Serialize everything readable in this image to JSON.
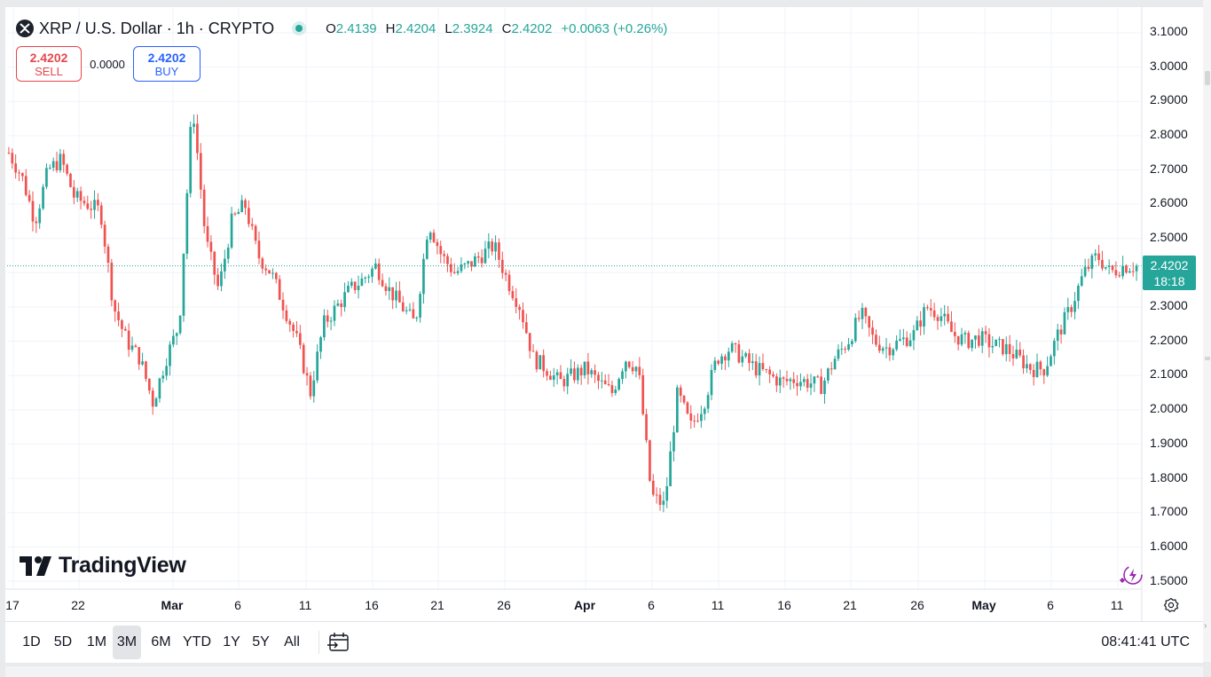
{
  "symbol": {
    "title": "XRP / U.S. Dollar · 1h · CRYPTO",
    "icon": "xrp-logo-icon",
    "status_icon": "market-open-dot-icon"
  },
  "ohlc": {
    "open_key": "O",
    "open": "2.4139",
    "high_key": "H",
    "high": "2.4204",
    "low_key": "L",
    "low": "2.3924",
    "close_key": "C",
    "close": "2.4202",
    "change": "+0.0063 (+0.26%)"
  },
  "trade": {
    "sell_price": "2.4202",
    "sell_label": "SELL",
    "spread": "0.0000",
    "buy_price": "2.4202",
    "buy_label": "BUY"
  },
  "brand": {
    "name": "TradingView",
    "icon": "tradingview-logo-icon"
  },
  "price_axis": {
    "labels": [
      "3.1000",
      "3.0000",
      "2.9000",
      "2.8000",
      "2.7000",
      "2.6000",
      "2.5000",
      "2.3000",
      "2.2000",
      "2.1000",
      "2.0000",
      "1.9000",
      "1.8000",
      "1.7000",
      "1.6000",
      "1.5000"
    ],
    "current_price": "2.4202",
    "countdown": "18:18"
  },
  "time_axis": {
    "labels": [
      "17",
      "22",
      "Mar",
      "6",
      "11",
      "16",
      "21",
      "26",
      "Apr",
      "6",
      "11",
      "16",
      "21",
      "26",
      "May",
      "6",
      "11"
    ],
    "settings_icon": "gear-icon"
  },
  "range_buttons": [
    "1D",
    "5D",
    "1M",
    "3M",
    "6M",
    "YTD",
    "1Y",
    "5Y",
    "All"
  ],
  "active_range": "3M",
  "date_range_icon": "calendar-goto-icon",
  "clock": "08:41:41 UTC",
  "colors": {
    "up": "#26a69a",
    "down": "#ef5350",
    "sell": "#e5474e",
    "buy": "#2962ff",
    "grid": "#f0f3fa"
  },
  "chart_data": {
    "type": "candlestick",
    "title": "XRP / U.S. Dollar · 1h · CRYPTO",
    "ylim": [
      1.5,
      3.1
    ],
    "x_ticks": [
      "17",
      "22",
      "Mar",
      "6",
      "11",
      "16",
      "21",
      "26",
      "Apr",
      "6",
      "11",
      "16",
      "21",
      "26",
      "May",
      "6",
      "11"
    ],
    "current_price": 2.4202,
    "grid": true,
    "series": [
      {
        "name": "XRPUSD close (approx, by date)",
        "dates": [
          "02-16",
          "02-17",
          "02-18",
          "02-19",
          "02-20",
          "02-21",
          "02-22",
          "02-23",
          "02-24",
          "02-25",
          "02-26",
          "02-27",
          "02-28",
          "03-01",
          "03-02",
          "03-03",
          "03-04",
          "03-05",
          "03-06",
          "03-07",
          "03-08",
          "03-09",
          "03-10",
          "03-11",
          "03-12",
          "03-13",
          "03-14",
          "03-15",
          "03-16",
          "03-17",
          "03-18",
          "03-19",
          "03-20",
          "03-21",
          "03-22",
          "03-23",
          "03-24",
          "03-25",
          "03-26",
          "03-27",
          "03-28",
          "03-29",
          "03-30",
          "03-31",
          "04-01",
          "04-02",
          "04-03",
          "04-04",
          "04-05",
          "04-06",
          "04-07",
          "04-08",
          "04-09",
          "04-10",
          "04-11",
          "04-12",
          "04-13",
          "04-14",
          "04-15",
          "04-16",
          "04-17",
          "04-18",
          "04-19",
          "04-20",
          "04-21",
          "04-22",
          "04-23",
          "04-24",
          "04-25",
          "04-26",
          "04-27",
          "04-28",
          "04-29",
          "04-30",
          "05-01",
          "05-02",
          "05-03",
          "05-04",
          "05-05",
          "05-06",
          "05-07",
          "05-08",
          "05-09",
          "05-10",
          "05-11",
          "05-12",
          "05-13"
        ],
        "close": [
          2.75,
          2.68,
          2.55,
          2.7,
          2.73,
          2.62,
          2.6,
          2.58,
          2.3,
          2.2,
          2.15,
          2.02,
          2.15,
          2.25,
          2.9,
          2.5,
          2.35,
          2.55,
          2.6,
          2.45,
          2.4,
          2.3,
          2.2,
          2.05,
          2.25,
          2.3,
          2.35,
          2.38,
          2.42,
          2.35,
          2.3,
          2.25,
          2.55,
          2.45,
          2.4,
          2.42,
          2.45,
          2.48,
          2.38,
          2.3,
          2.15,
          2.12,
          2.08,
          2.1,
          2.12,
          2.08,
          2.05,
          2.15,
          2.12,
          1.75,
          1.72,
          2.05,
          1.95,
          2.02,
          2.15,
          2.18,
          2.15,
          2.12,
          2.1,
          2.08,
          2.09,
          2.08,
          2.07,
          2.15,
          2.2,
          2.28,
          2.2,
          2.18,
          2.2,
          2.22,
          2.3,
          2.28,
          2.22,
          2.2,
          2.21,
          2.19,
          2.18,
          2.15,
          2.12,
          2.12,
          2.22,
          2.3,
          2.4,
          2.45,
          2.4,
          2.42,
          2.42
        ]
      }
    ]
  }
}
